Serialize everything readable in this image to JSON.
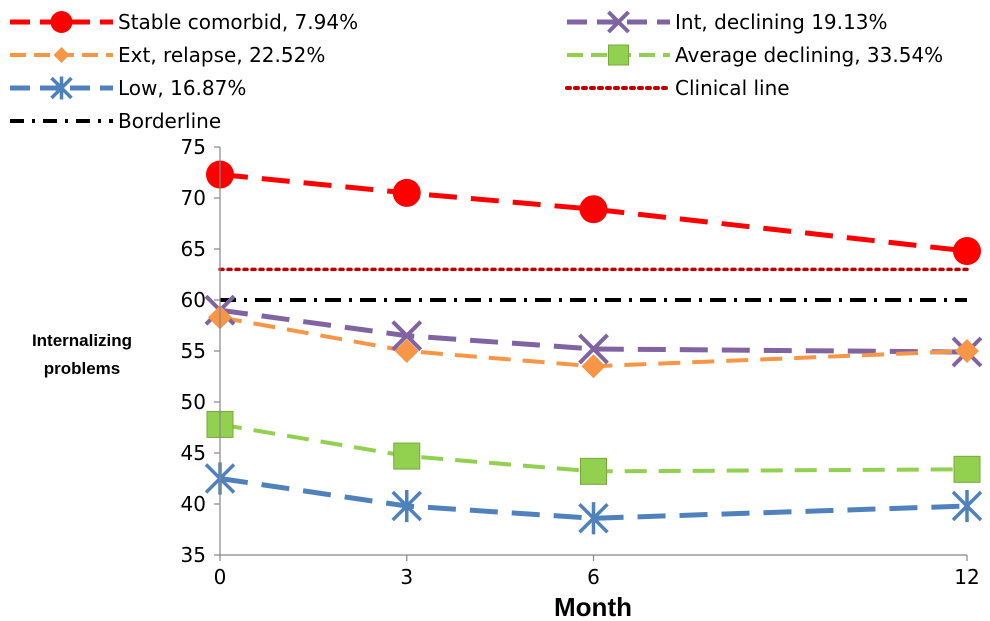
{
  "chart_data": {
    "type": "line",
    "x": [
      0,
      3,
      6,
      12
    ],
    "x_tick_labels": [
      "0",
      "3",
      "6",
      "12"
    ],
    "xlabel": "Month",
    "ylabel_lines": [
      "Internalizing",
      "problems"
    ],
    "ylim": [
      35,
      75
    ],
    "y_ticks": [
      35,
      40,
      45,
      50,
      55,
      60,
      65,
      70,
      75
    ],
    "grid": false,
    "legend_position": "top",
    "series": [
      {
        "name": "Stable comorbid, 7.94%",
        "values": [
          72.3,
          70.5,
          68.9,
          64.8
        ],
        "color": "#ff0000",
        "marker": "circle",
        "dash": "long"
      },
      {
        "name": "Int, declining 19.13%",
        "values": [
          59.0,
          56.5,
          55.2,
          54.9
        ],
        "color": "#8064a2",
        "marker": "x",
        "dash": "long"
      },
      {
        "name": "Ext, relapse, 22.52%",
        "values": [
          58.3,
          55.0,
          53.5,
          55.0
        ],
        "color": "#f79646",
        "marker": "diamond",
        "dash": "medium"
      },
      {
        "name": "Average declining, 33.54%",
        "values": [
          47.8,
          44.7,
          43.2,
          43.4
        ],
        "color": "#92d050",
        "marker": "square",
        "dash": "medium"
      },
      {
        "name": "Low, 16.87%",
        "values": [
          42.5,
          39.8,
          38.6,
          39.8
        ],
        "color": "#4f81bd",
        "marker": "star",
        "dash": "long"
      }
    ],
    "reference_lines": [
      {
        "name": "Clinical line",
        "value": 63,
        "color": "#c00000",
        "style": "dotted"
      },
      {
        "name": "Borderline",
        "value": 60,
        "color": "#000000",
        "style": "dashdot"
      }
    ]
  }
}
